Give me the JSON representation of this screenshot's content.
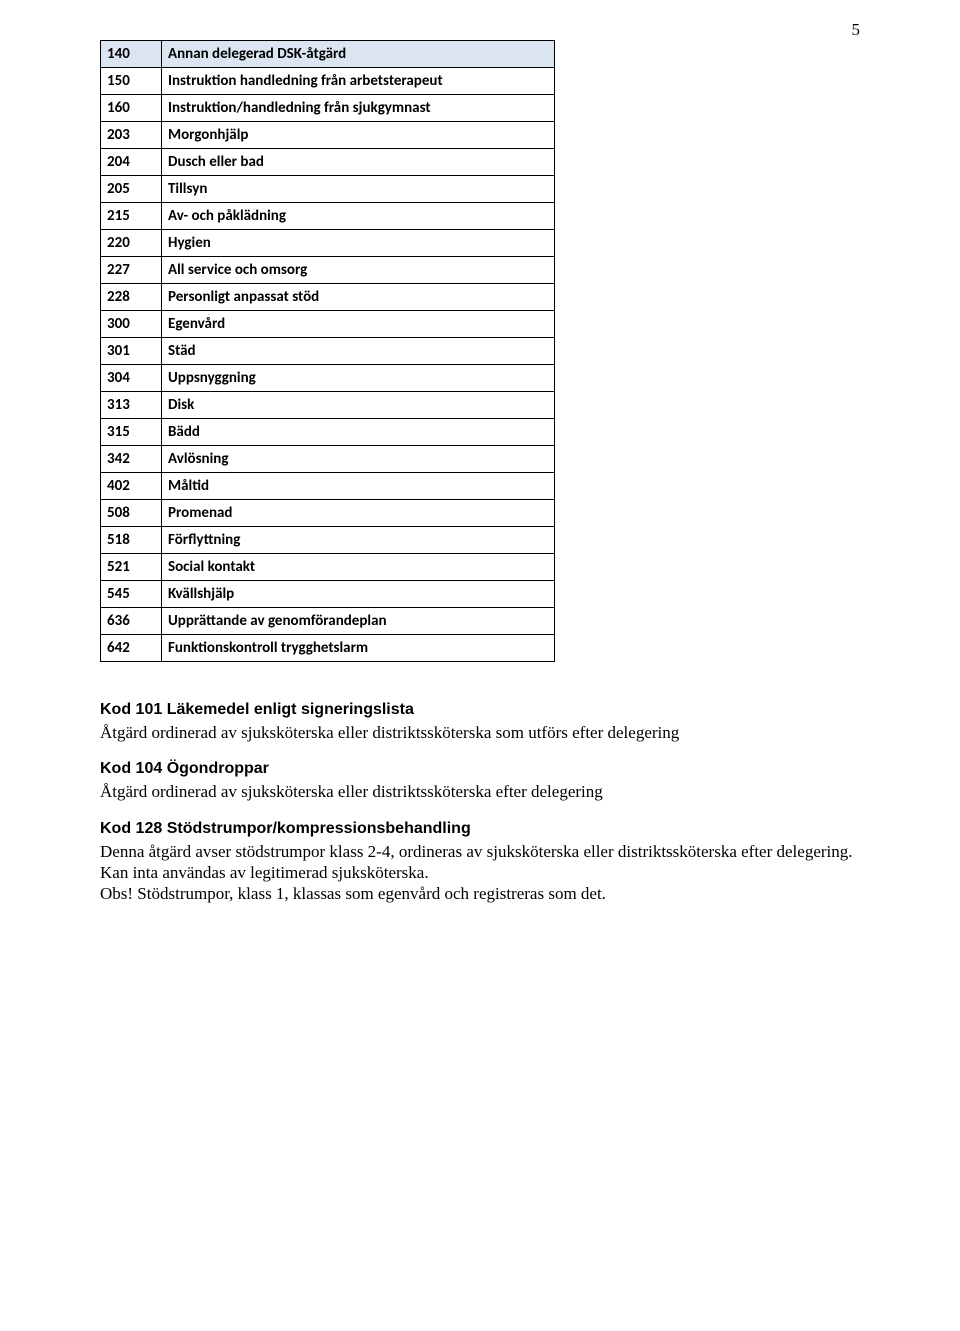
{
  "page_number": "5",
  "table": {
    "col_widths": [
      "48px",
      "auto"
    ],
    "shaded_row_bg": "#dbe5f1",
    "border_color": "#000000",
    "font_weight": 700,
    "rows": [
      {
        "code": "140",
        "label": "Annan delegerad DSK-åtgärd",
        "shaded": true
      },
      {
        "code": "150",
        "label": "Instruktion handledning från arbetsterapeut",
        "shaded": false
      },
      {
        "code": "160",
        "label": "Instruktion/handledning från sjukgymnast",
        "shaded": false
      },
      {
        "code": "203",
        "label": "Morgonhjälp",
        "shaded": false
      },
      {
        "code": "204",
        "label": "Dusch eller bad",
        "shaded": false
      },
      {
        "code": "205",
        "label": "Tillsyn",
        "shaded": false
      },
      {
        "code": "215",
        "label": "Av- och påklädning",
        "shaded": false
      },
      {
        "code": "220",
        "label": "Hygien",
        "shaded": false
      },
      {
        "code": "227",
        "label": "All service och omsorg",
        "shaded": false
      },
      {
        "code": "228",
        "label": "Personligt anpassat stöd",
        "shaded": false
      },
      {
        "code": "300",
        "label": "Egenvård",
        "shaded": false
      },
      {
        "code": "301",
        "label": "Städ",
        "shaded": false
      },
      {
        "code": "304",
        "label": "Uppsnyggning",
        "shaded": false
      },
      {
        "code": "313",
        "label": "Disk",
        "shaded": false
      },
      {
        "code": "315",
        "label": "Bädd",
        "shaded": false
      },
      {
        "code": "342",
        "label": "Avlösning",
        "shaded": false
      },
      {
        "code": "402",
        "label": "Måltid",
        "shaded": false
      },
      {
        "code": "508",
        "label": "Promenad",
        "shaded": false
      },
      {
        "code": "518",
        "label": "Förflyttning",
        "shaded": false
      },
      {
        "code": "521",
        "label": "Social kontakt",
        "shaded": false
      },
      {
        "code": "545",
        "label": "Kvällshjälp",
        "shaded": false
      },
      {
        "code": "636",
        "label": "Upprättande av genomförandeplan",
        "shaded": false
      },
      {
        "code": "642",
        "label": "Funktionskontroll trygghetslarm",
        "shaded": false
      }
    ]
  },
  "sections": [
    {
      "heading": "Kod 101 Läkemedel enligt signeringslista",
      "body": "Åtgärd ordinerad av sjuksköterska eller distriktssköterska som utförs efter delegering"
    },
    {
      "heading": "Kod 104 Ögondroppar",
      "body": "Åtgärd ordinerad av sjuksköterska eller distriktssköterska efter delegering"
    },
    {
      "heading": "Kod 128 Stödstrumpor/kompressionsbehandling",
      "body": "Denna åtgärd avser stödstrumpor klass 2-4, ordineras av sjuksköterska eller distriktssköterska efter delegering. Kan inta användas av legitimerad sjuksköterska.\nObs! Stödstrumpor, klass 1, klassas som egenvård och registreras som det."
    }
  ]
}
